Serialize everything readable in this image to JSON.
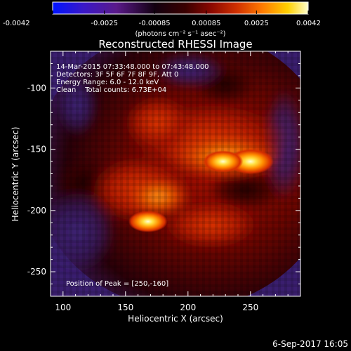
{
  "chart_data": {
    "type": "heatmap",
    "title": "Reconstructed RHESSI Image",
    "xlabel": "Heliocentric X (arcsec)",
    "ylabel": "Heliocentric Y (arcsec)",
    "xlim": [
      90,
      290
    ],
    "ylim": [
      -270,
      -70
    ],
    "x_ticks": [
      100,
      150,
      200,
      250
    ],
    "y_ticks": [
      -100,
      -150,
      -200,
      -250
    ],
    "colorbar": {
      "min": -0.0042,
      "max": 0.0042,
      "ticks": [
        "-0.0042",
        "-0.0025",
        "-0.00085",
        "0.00085",
        "0.0025",
        "0.0042"
      ],
      "tick_values": [
        -0.0042,
        -0.0025,
        -0.00085,
        0.00085,
        0.0025,
        0.0042
      ],
      "label": "(photons cm⁻² s⁻¹ asec⁻²)",
      "colors": [
        "#0014ff",
        "#3a18c8",
        "#5a1a8a",
        "#000000",
        "#7a0400",
        "#c82800",
        "#ff7a00",
        "#ffd000",
        "#ffffcc"
      ]
    },
    "annotations": [
      "14-Mar-2015 07:33:48.000 to 07:43:48.000",
      "Detectors: 3F 5F 6F 7F 8F 9F, Att 0",
      "Energy Range: 6.0 - 12.0 keV",
      "Clean    Total counts: 6.73E+04",
      "Position of Peak = [250,-160]"
    ],
    "sources": [
      {
        "x": 250,
        "y": -160,
        "value": 0.0042
      },
      {
        "x": 228,
        "y": -160,
        "value": 0.0032
      },
      {
        "x": 168,
        "y": -209,
        "value": 0.003
      }
    ],
    "footer": "6-Sep-2017 16:05"
  }
}
